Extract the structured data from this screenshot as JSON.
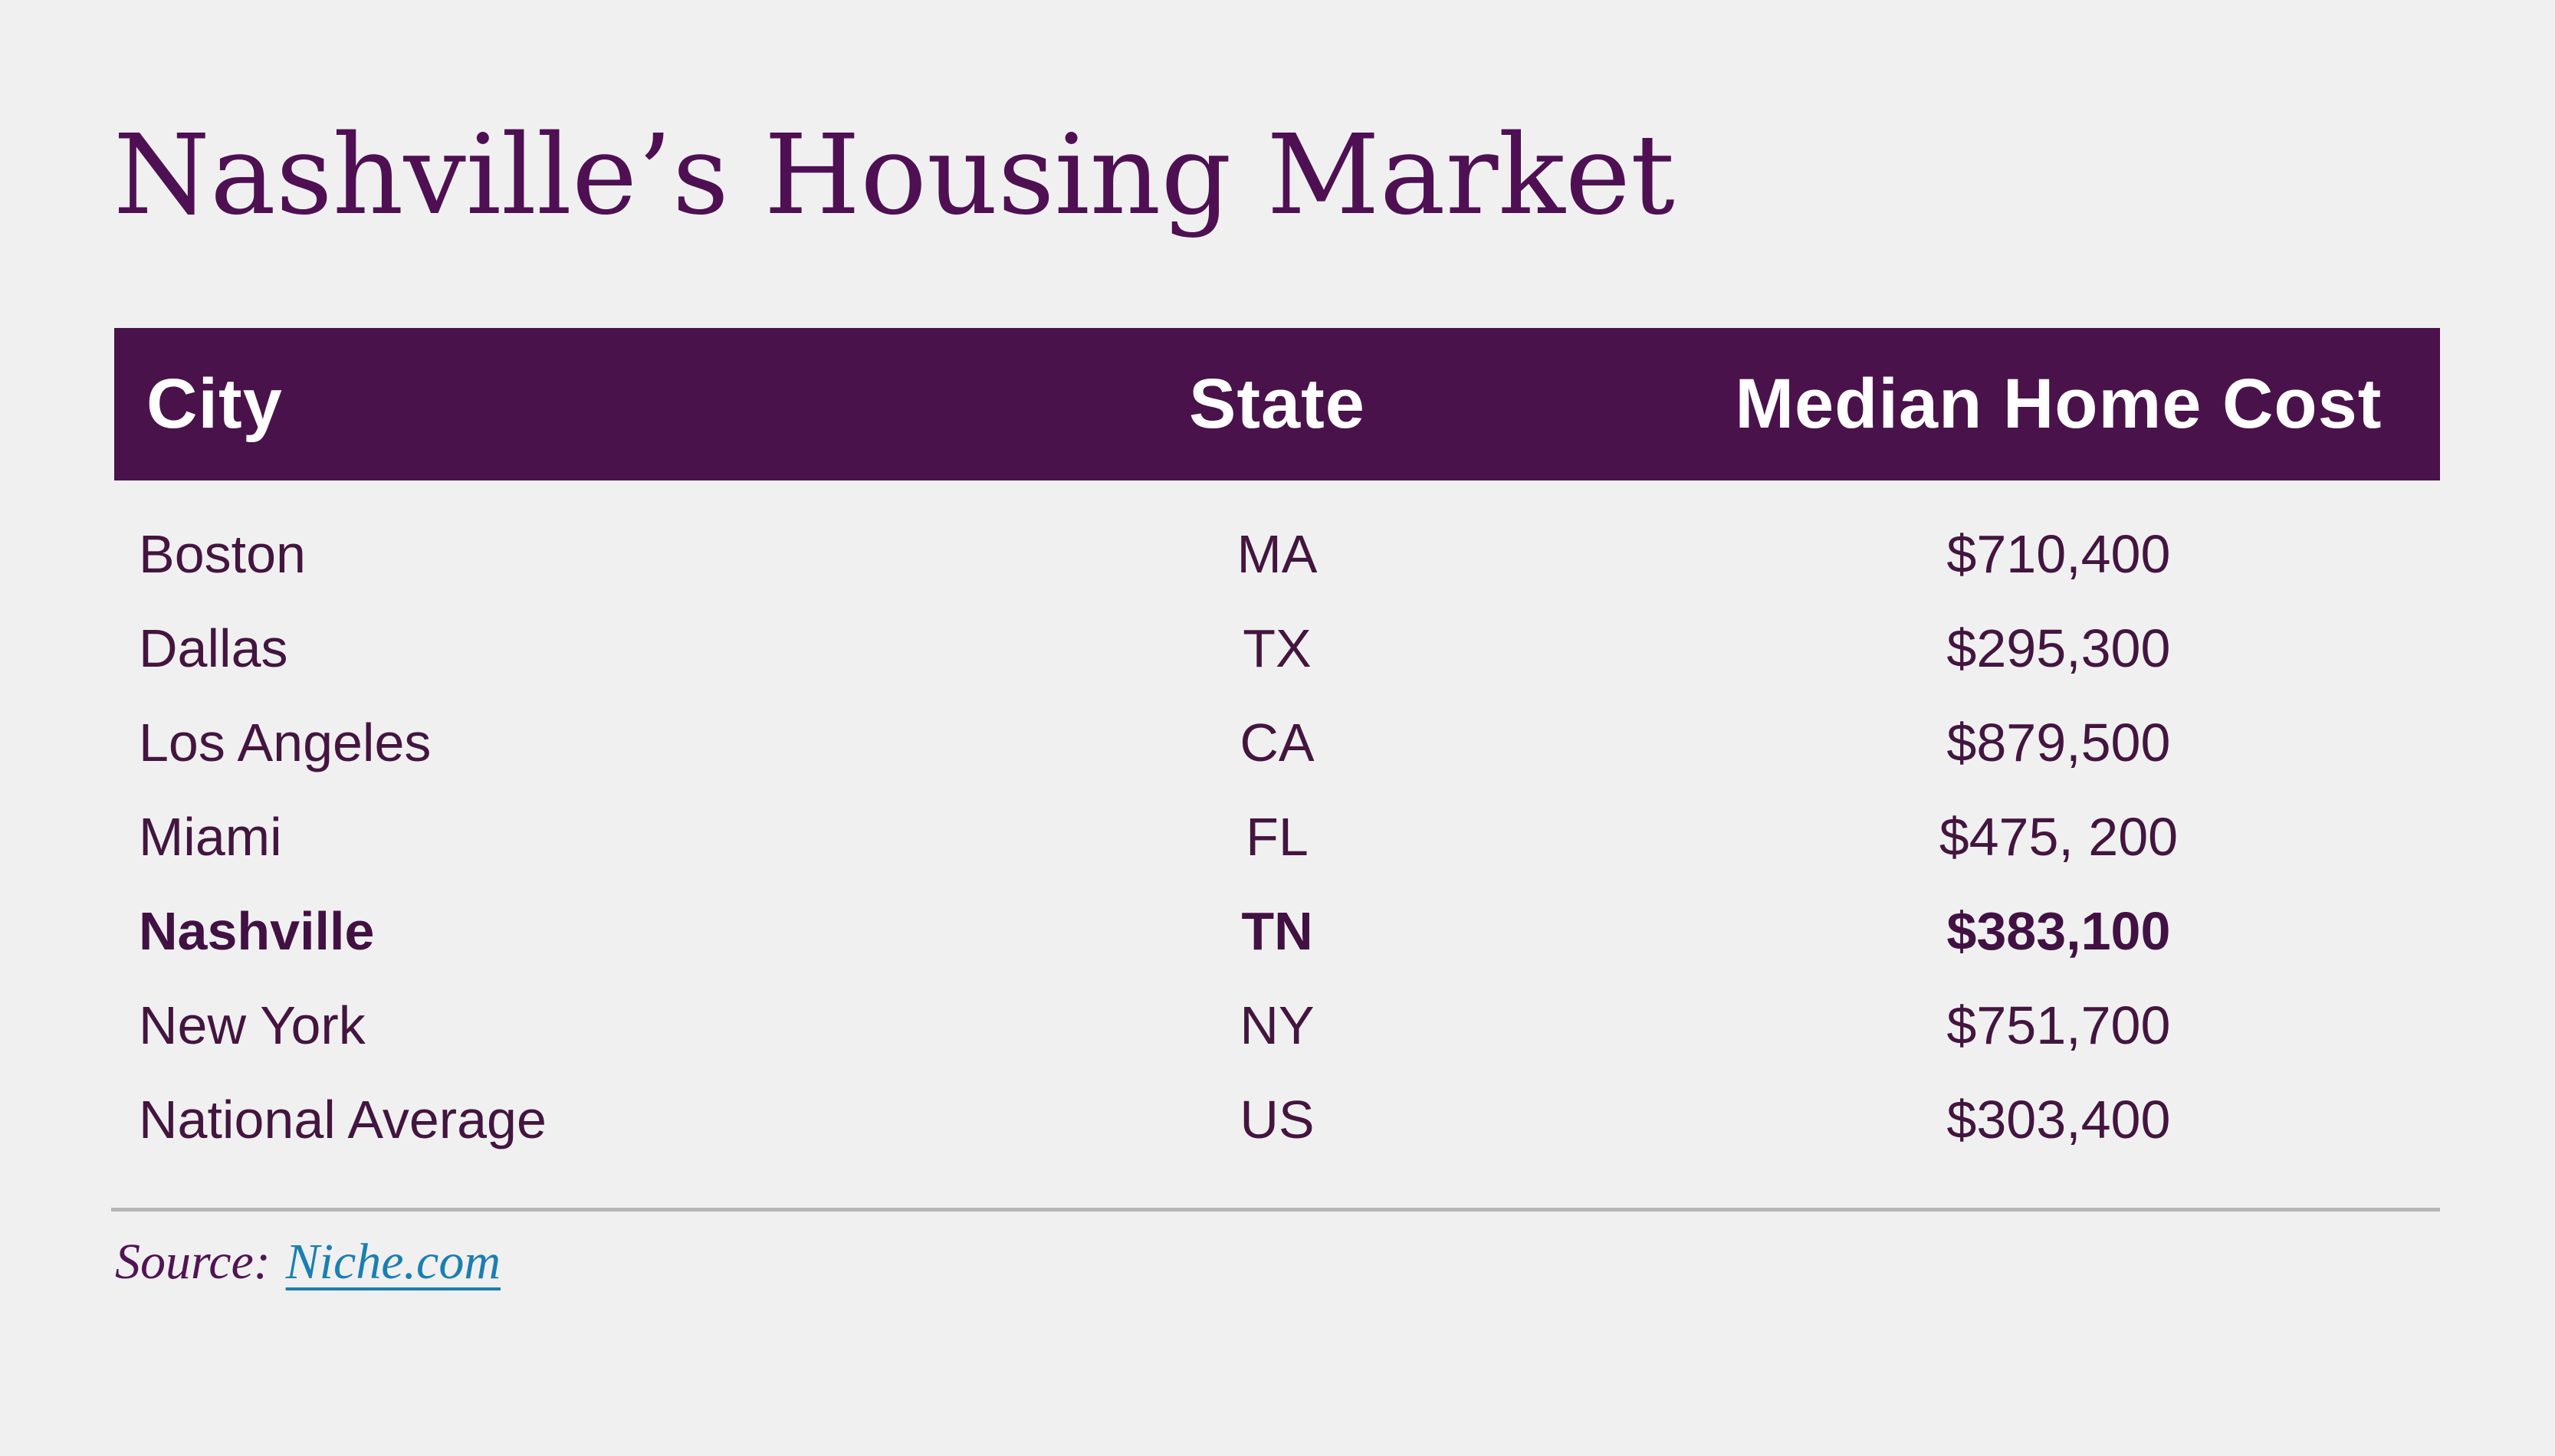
{
  "page": {
    "title": "Nashville’s Housing Market",
    "source_label": "Source:",
    "source_link": "Niche.com"
  },
  "table": {
    "headers": {
      "city": "City",
      "state": "State",
      "cost": "Median Home Cost"
    },
    "rows": [
      {
        "city": "Boston",
        "state": "MA",
        "cost": "$710,400"
      },
      {
        "city": "Dallas",
        "state": "TX",
        "cost": "$295,300"
      },
      {
        "city": "Los Angeles",
        "state": "CA",
        "cost": "$879,500"
      },
      {
        "city": "Miami",
        "state": "FL",
        "cost": "$475, 200"
      },
      {
        "city": "Nashville",
        "state": "TN",
        "cost": "$383,100",
        "highlighted": true
      },
      {
        "city": "New York",
        "state": "NY",
        "cost": "$751,700"
      },
      {
        "city": "National Average",
        "state": "US",
        "cost": "$303,400"
      }
    ]
  },
  "chart_data": {
    "type": "table",
    "title": "Nashville’s Housing Market",
    "columns": [
      "City",
      "State",
      "Median Home Cost"
    ],
    "rows": [
      [
        "Boston",
        "MA",
        "$710,400"
      ],
      [
        "Dallas",
        "TX",
        "$295,300"
      ],
      [
        "Los Angeles",
        "CA",
        "$879,500"
      ],
      [
        "Miami",
        "FL",
        "$475, 200"
      ],
      [
        "Nashville",
        "TN",
        "$383,100"
      ],
      [
        "New York",
        "NY",
        "$751,700"
      ],
      [
        "National Average",
        "US",
        "$303,400"
      ]
    ],
    "median_home_cost_numeric": [
      710400,
      295300,
      879500,
      475200,
      383100,
      751700,
      303400
    ],
    "highlighted_row": "Nashville",
    "source": "Niche.com"
  },
  "colors": {
    "background": "#f0f0f0",
    "header_background": "#4a124b",
    "header_text": "#ffffff",
    "title_text": "#4e1053",
    "row_text": "#43153f",
    "source_text": "#511453",
    "link": "#1a7fb1",
    "divider": "#b5b5b5"
  }
}
